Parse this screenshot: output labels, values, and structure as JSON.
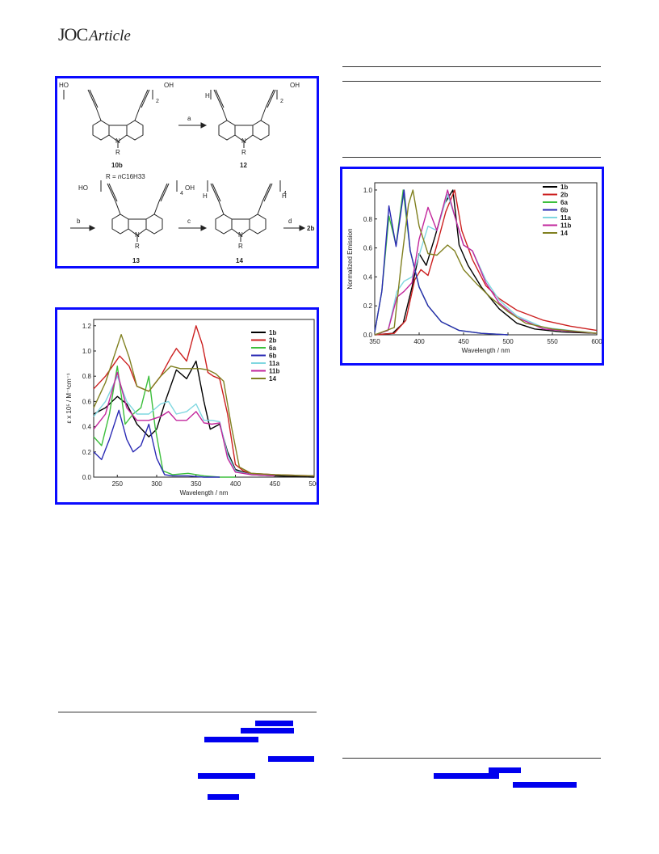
{
  "header": {
    "journal": "JOC",
    "section": "Article"
  },
  "scheme": {
    "compounds": [
      "10b",
      "12",
      "13",
      "14",
      "2b"
    ],
    "r_group_prefix": "R = ",
    "r_group_n": "n",
    "r_group_formula": "C16H33",
    "reagents": [
      "a",
      "b",
      "c",
      "d"
    ],
    "subscripts": [
      "2",
      "4"
    ],
    "atom_labels": {
      "hydroxyl": "OH",
      "hydroxyl_left": "HO",
      "hydrogen": "H",
      "nitrogen": "N",
      "r": "R"
    }
  },
  "chart_data": [
    {
      "type": "line",
      "xlabel": "Wavelength / nm",
      "ylabel": "ε x 10⁵ / M⁻¹cm⁻¹",
      "xlim": [
        220,
        500
      ],
      "ylim": [
        0,
        1.25
      ],
      "xticks": [
        250,
        300,
        350,
        400,
        450,
        500
      ],
      "yticks": [
        0.0,
        0.2,
        0.4,
        0.6,
        0.8,
        1.0,
        1.2
      ],
      "legend_position": "top-right",
      "series": [
        {
          "name": "1b",
          "color": "#000000",
          "x": [
            220,
            235,
            250,
            262,
            275,
            290,
            300,
            312,
            325,
            338,
            350,
            360,
            368,
            380,
            390,
            400,
            420,
            450,
            500
          ],
          "y": [
            0.5,
            0.55,
            0.64,
            0.58,
            0.42,
            0.32,
            0.38,
            0.62,
            0.85,
            0.78,
            0.92,
            0.6,
            0.38,
            0.42,
            0.2,
            0.06,
            0.02,
            0.01,
            0.0
          ]
        },
        {
          "name": "2b",
          "color": "#cc2020",
          "x": [
            220,
            235,
            253,
            265,
            275,
            290,
            305,
            318,
            325,
            338,
            350,
            358,
            365,
            372,
            380,
            390,
            400,
            410,
            420,
            450,
            500
          ],
          "y": [
            0.7,
            0.8,
            0.96,
            0.88,
            0.72,
            0.68,
            0.8,
            0.95,
            1.02,
            0.92,
            1.2,
            1.05,
            0.83,
            0.8,
            0.78,
            0.5,
            0.1,
            0.05,
            0.03,
            0.02,
            0.01
          ]
        },
        {
          "name": "6a",
          "color": "#3cbf3c",
          "x": [
            220,
            230,
            240,
            250,
            260,
            270,
            280,
            290,
            298,
            308,
            320,
            340,
            360,
            380,
            400
          ],
          "y": [
            0.32,
            0.25,
            0.5,
            0.88,
            0.42,
            0.5,
            0.55,
            0.8,
            0.4,
            0.05,
            0.02,
            0.03,
            0.01,
            0.0,
            0.0
          ]
        },
        {
          "name": "6b",
          "color": "#2a2ab4",
          "x": [
            220,
            230,
            240,
            252,
            262,
            270,
            280,
            290,
            300,
            310,
            320,
            340,
            360,
            380
          ],
          "y": [
            0.2,
            0.14,
            0.3,
            0.53,
            0.3,
            0.2,
            0.25,
            0.42,
            0.15,
            0.02,
            0.01,
            0.01,
            0.0,
            0.0
          ]
        },
        {
          "name": "11a",
          "color": "#7fd7e0",
          "x": [
            220,
            235,
            250,
            262,
            275,
            290,
            305,
            315,
            325,
            338,
            350,
            360,
            370,
            380,
            390,
            400,
            420,
            450
          ],
          "y": [
            0.48,
            0.6,
            0.8,
            0.6,
            0.5,
            0.5,
            0.58,
            0.6,
            0.5,
            0.52,
            0.58,
            0.45,
            0.45,
            0.44,
            0.18,
            0.05,
            0.02,
            0.01
          ]
        },
        {
          "name": "11b",
          "color": "#c2269c",
          "x": [
            220,
            235,
            250,
            262,
            275,
            290,
            305,
            315,
            325,
            338,
            350,
            360,
            370,
            380,
            390,
            400,
            420,
            450
          ],
          "y": [
            0.38,
            0.5,
            0.83,
            0.55,
            0.45,
            0.45,
            0.48,
            0.52,
            0.45,
            0.45,
            0.52,
            0.43,
            0.42,
            0.43,
            0.15,
            0.04,
            0.02,
            0.01
          ]
        },
        {
          "name": "14",
          "color": "#808020",
          "x": [
            220,
            235,
            255,
            265,
            275,
            290,
            305,
            318,
            330,
            345,
            355,
            365,
            375,
            385,
            395,
            405,
            420,
            450,
            500
          ],
          "y": [
            0.55,
            0.75,
            1.13,
            0.95,
            0.72,
            0.68,
            0.8,
            0.88,
            0.86,
            0.86,
            0.86,
            0.85,
            0.82,
            0.76,
            0.4,
            0.08,
            0.03,
            0.02,
            0.01
          ]
        }
      ]
    },
    {
      "type": "line",
      "xlabel": "Wavelength / nm",
      "ylabel": "Normalized Emission",
      "xlim": [
        350,
        600
      ],
      "ylim": [
        0,
        1.05
      ],
      "xticks": [
        350,
        400,
        450,
        500,
        550,
        600
      ],
      "yticks": [
        0.0,
        0.2,
        0.4,
        0.6,
        0.8,
        1.0
      ],
      "legend_position": "top-right",
      "series": [
        {
          "name": "1b",
          "color": "#000000",
          "x": [
            350,
            370,
            382,
            392,
            400,
            408,
            418,
            428,
            438,
            445,
            455,
            470,
            490,
            510,
            530,
            560,
            600
          ],
          "y": [
            0.0,
            0.01,
            0.08,
            0.33,
            0.56,
            0.48,
            0.68,
            0.9,
            1.0,
            0.62,
            0.48,
            0.33,
            0.18,
            0.08,
            0.04,
            0.02,
            0.01
          ]
        },
        {
          "name": "2b",
          "color": "#cc2020",
          "x": [
            350,
            372,
            385,
            395,
            402,
            410,
            420,
            430,
            440,
            448,
            460,
            475,
            490,
            510,
            540,
            570,
            600
          ],
          "y": [
            0.0,
            0.01,
            0.1,
            0.38,
            0.45,
            0.41,
            0.62,
            0.85,
            1.0,
            0.72,
            0.52,
            0.34,
            0.25,
            0.17,
            0.1,
            0.06,
            0.03
          ]
        },
        {
          "name": "6a",
          "color": "#3cbf3c",
          "x": [
            350,
            358,
            366,
            374,
            382,
            390,
            400,
            410,
            425,
            445,
            470,
            500
          ],
          "y": [
            0.02,
            0.3,
            0.82,
            0.62,
            1.0,
            0.58,
            0.33,
            0.2,
            0.09,
            0.03,
            0.01,
            0.0
          ]
        },
        {
          "name": "6b",
          "color": "#2a2ab4",
          "x": [
            350,
            358,
            366,
            374,
            383,
            390,
            400,
            410,
            425,
            445,
            470,
            500
          ],
          "y": [
            0.02,
            0.3,
            0.89,
            0.61,
            1.0,
            0.58,
            0.33,
            0.2,
            0.09,
            0.03,
            0.01,
            0.0
          ]
        },
        {
          "name": "11a",
          "color": "#7fd7e0",
          "x": [
            350,
            365,
            375,
            383,
            392,
            400,
            410,
            420,
            432,
            440,
            450,
            460,
            475,
            490,
            510,
            540,
            600
          ],
          "y": [
            0.0,
            0.03,
            0.3,
            0.37,
            0.4,
            0.55,
            0.75,
            0.72,
            0.97,
            0.82,
            0.62,
            0.58,
            0.38,
            0.24,
            0.13,
            0.05,
            0.01
          ]
        },
        {
          "name": "11b",
          "color": "#c2269c",
          "x": [
            350,
            365,
            375,
            383,
            392,
            400,
            410,
            420,
            432,
            440,
            450,
            460,
            475,
            490,
            510,
            540,
            600
          ],
          "y": [
            0.0,
            0.03,
            0.26,
            0.3,
            0.36,
            0.66,
            0.88,
            0.72,
            1.0,
            0.82,
            0.62,
            0.58,
            0.36,
            0.22,
            0.12,
            0.04,
            0.01
          ]
        },
        {
          "name": "14",
          "color": "#808020",
          "x": [
            350,
            372,
            380,
            388,
            393,
            400,
            410,
            420,
            432,
            440,
            450,
            465,
            480,
            500,
            520,
            550,
            600
          ],
          "y": [
            0.0,
            0.05,
            0.5,
            0.9,
            1.0,
            0.75,
            0.56,
            0.55,
            0.62,
            0.58,
            0.45,
            0.35,
            0.26,
            0.16,
            0.08,
            0.04,
            0.01
          ]
        }
      ]
    }
  ]
}
